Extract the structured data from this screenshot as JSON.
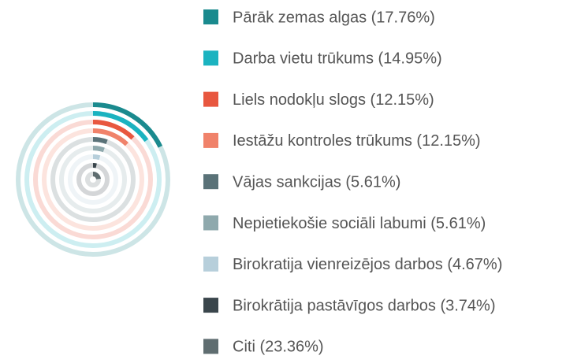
{
  "chart_data": {
    "type": "radial_bar",
    "categories": [
      "Pārāk zemas algas (17.76%)",
      "Darba vietu trūkums (14.95%)",
      "Liels nodokļu slogs (12.15%)",
      "Iestāžu kontroles trūkums (12.15%)",
      "Vājas sankcijas (5.61%)",
      "Nepietiekošie sociāli labumi (5.61%)",
      "Birokratija vienreizējos darbos (4.67%)",
      "Birokrātija pastāvīgos darbos (3.74%)",
      "Citi (23.36%)"
    ],
    "values": [
      17.76,
      14.95,
      12.15,
      12.15,
      5.61,
      5.61,
      4.67,
      3.74,
      23.36
    ],
    "colors": [
      "#1a8a8e",
      "#1bb3c0",
      "#e8573f",
      "#f0826a",
      "#5a7278",
      "#8fa9ad",
      "#b7cfdb",
      "#3a464c",
      "#5f6d70"
    ]
  }
}
